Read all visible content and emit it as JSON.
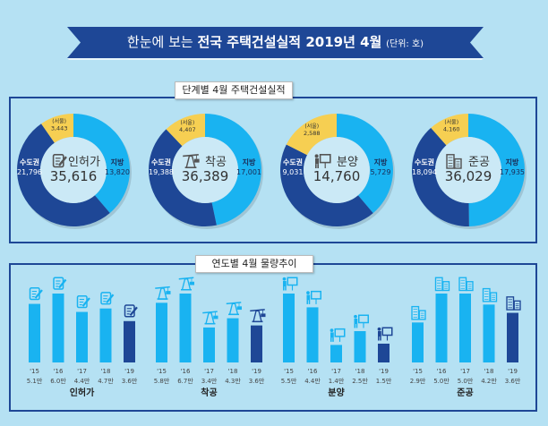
{
  "header": {
    "title_prefix": "한눈에 보는",
    "title_bold": "전국 주택건설실적 2019년 4월",
    "unit": "(단위: 호)"
  },
  "colors": {
    "background": "#b5e1f3",
    "dark_blue": "#1e4796",
    "light_blue": "#19b3f1",
    "yellow": "#f6cf52",
    "ribbon": "#1e4796"
  },
  "chart_data": [
    {
      "type": "pie",
      "title": "단계별 4월 주택건설실적",
      "donuts": [
        {
          "name": "인허가",
          "icon": "document-pen-icon",
          "total": "35,616",
          "capital_label": "수도권",
          "capital": "21,796",
          "seoul_label": "(서울)",
          "seoul": "3,443",
          "region_label": "지방",
          "region": "13,820",
          "values": {
            "capital": 21796,
            "seoul": 3443,
            "region": 13820
          }
        },
        {
          "name": "착공",
          "icon": "crane-icon",
          "total": "36,389",
          "capital_label": "수도권",
          "capital": "19,388",
          "seoul_label": "(서울)",
          "seoul": "4,407",
          "region_label": "지방",
          "region": "17,001",
          "values": {
            "capital": 19388,
            "seoul": 4407,
            "region": 17001
          }
        },
        {
          "name": "분양",
          "icon": "presentation-icon",
          "total": "14,760",
          "capital_label": "수도권",
          "capital": "9,031",
          "seoul_label": "(서울)",
          "seoul": "2,588",
          "region_label": "지방",
          "region": "5,729",
          "values": {
            "capital": 9031,
            "seoul": 2588,
            "region": 5729
          }
        },
        {
          "name": "준공",
          "icon": "building-icon",
          "total": "36,029",
          "capital_label": "수도권",
          "capital": "18,094",
          "seoul_label": "(서울)",
          "seoul": "4,160",
          "region_label": "지방",
          "region": "17,935",
          "values": {
            "capital": 18094,
            "seoul": 4160,
            "region": 17935
          }
        }
      ]
    },
    {
      "type": "bar",
      "title": "연도별 4월 물량추이",
      "unit": "만",
      "groups": [
        {
          "name": "인허가",
          "icon": "document-pen-icon",
          "categories": [
            "'15",
            "'16",
            "'17",
            "'18",
            "'19"
          ],
          "labels": [
            "5.1만",
            "6.0만",
            "4.4만",
            "4.7만",
            "3.6만"
          ],
          "values": [
            5.1,
            6.0,
            4.4,
            4.7,
            3.6
          ]
        },
        {
          "name": "착공",
          "icon": "crane-icon",
          "categories": [
            "'15",
            "'16",
            "'17",
            "'18",
            "'19"
          ],
          "labels": [
            "5.8만",
            "6.7만",
            "3.4만",
            "4.3만",
            "3.6만"
          ],
          "values": [
            5.8,
            6.7,
            3.4,
            4.3,
            3.6
          ]
        },
        {
          "name": "분양",
          "icon": "presentation-icon",
          "categories": [
            "'15",
            "'16",
            "'17",
            "'18",
            "'19"
          ],
          "labels": [
            "5.5만",
            "4.4만",
            "1.4만",
            "2.5만",
            "1.5만"
          ],
          "values": [
            5.5,
            4.4,
            1.4,
            2.5,
            1.5
          ]
        },
        {
          "name": "준공",
          "icon": "building-icon",
          "categories": [
            "'15",
            "'16",
            "'17",
            "'18",
            "'19"
          ],
          "labels": [
            "2.9만",
            "5.0만",
            "5.0만",
            "4.2만",
            "3.6만"
          ],
          "values": [
            2.9,
            5.0,
            5.0,
            4.2,
            3.6
          ]
        }
      ]
    }
  ]
}
